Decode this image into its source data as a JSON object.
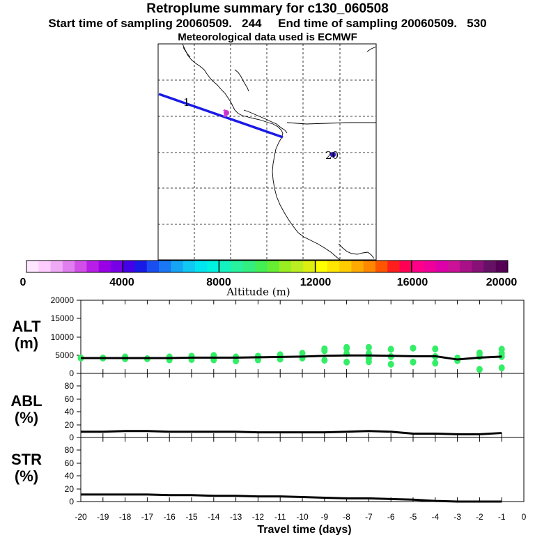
{
  "titles": {
    "line1": "Retroplume summary for c130_060508",
    "line2": "Start time of sampling 20060509.   244     End time of sampling 20060509.   530",
    "line3": "Meteorological data used is ECMWF"
  },
  "colors": {
    "track": "#1a1ae6",
    "dots": "#33ee66",
    "line": "#000000"
  },
  "map": {
    "markers": [
      {
        "text": "1",
        "color": "#000000"
      },
      {
        "text": "1",
        "color": "#cc33cc"
      },
      {
        "text": "20",
        "color": "#000000"
      }
    ]
  },
  "colorbar": {
    "label": "Altitude (m)",
    "ticks": [
      "0",
      "4000",
      "8000",
      "12000",
      "16000",
      "20000"
    ],
    "colors": [
      "#ffe6ff",
      "#ffccff",
      "#f0aaf5",
      "#e17ff0",
      "#d14ee8",
      "#b81ee6",
      "#9900e6",
      "#7700e6",
      "#4400e6",
      "#1a1ae6",
      "#1a4ef0",
      "#1a78f5",
      "#16a4f5",
      "#10c8f2",
      "#00e6f0",
      "#00f2e0",
      "#14f2c0",
      "#28f29e",
      "#33ee80",
      "#44ee55",
      "#66ee33",
      "#99ee22",
      "#bbee22",
      "#ddee11",
      "#ffff00",
      "#ffe600",
      "#ffcc00",
      "#ffaa00",
      "#ff8800",
      "#ff5500",
      "#ff1e1e",
      "#ff0055",
      "#ff0088",
      "#f00099",
      "#dd00aa",
      "#cc1199",
      "#aa1188",
      "#881177",
      "#661166",
      "#550055"
    ]
  },
  "panels": {
    "alt": {
      "label1": "ALT",
      "label2": "(m)",
      "yticks": [
        "0",
        "5000",
        "10000",
        "15000",
        "20000"
      ]
    },
    "abl": {
      "label1": "ABL",
      "label2": "(%)",
      "yticks": [
        "0",
        "20",
        "40",
        "60",
        "80"
      ]
    },
    "str": {
      "label1": "STR",
      "label2": "(%)",
      "yticks": [
        "0",
        "20",
        "40",
        "60",
        "80"
      ]
    }
  },
  "xaxis": {
    "label": "Travel time (days)",
    "ticks": [
      "-20",
      "-19",
      "-18",
      "-17",
      "-16",
      "-15",
      "-14",
      "-13",
      "-12",
      "-11",
      "-10",
      "-9",
      "-8",
      "-7",
      "-6",
      "-5",
      "-4",
      "-3",
      "-2",
      "-1",
      "0"
    ]
  },
  "chart_data": [
    {
      "type": "scatter",
      "title": "ALT (m)",
      "xlabel": "Travel time (days)",
      "ylabel": "Altitude (m)",
      "xlim": [
        -20,
        0
      ],
      "ylim": [
        0,
        20000
      ],
      "series": [
        {
          "name": "mean altitude",
          "x": [
            -20,
            -19,
            -18,
            -17,
            -16,
            -15,
            -14,
            -13,
            -12,
            -11,
            -10,
            -9,
            -8,
            -7,
            -6,
            -5,
            -4,
            -3,
            -2,
            -1
          ],
          "values": [
            4200,
            4200,
            4200,
            4200,
            4200,
            4300,
            4300,
            4300,
            4400,
            4500,
            4600,
            4800,
            4900,
            4900,
            4800,
            4700,
            4700,
            3800,
            4300,
            4600
          ]
        },
        {
          "name": "cluster altitudes",
          "x": [
            -20,
            -19,
            -18,
            -18,
            -17,
            -16,
            -16,
            -15,
            -15,
            -14,
            -14,
            -13,
            -13,
            -12,
            -12,
            -11,
            -11,
            -10,
            -10,
            -9,
            -9,
            -9,
            -8,
            -8,
            -8,
            -8,
            -7,
            -7,
            -7,
            -7,
            -6,
            -6,
            -6,
            -5,
            -5,
            -4,
            -4,
            -4,
            -3,
            -3,
            -2,
            -2,
            -2,
            -1,
            -1,
            -1,
            -1
          ],
          "values": [
            4200,
            4200,
            4500,
            4000,
            4000,
            3700,
            4500,
            3800,
            4700,
            3700,
            4900,
            3400,
            4500,
            3700,
            4700,
            3900,
            5100,
            4200,
            5500,
            3600,
            6200,
            6700,
            3100,
            5400,
            6800,
            7100,
            3200,
            4100,
            5400,
            7100,
            2500,
            4600,
            6600,
            3100,
            6900,
            2800,
            4600,
            6700,
            4200,
            3500,
            5600,
            4600,
            1100,
            1500,
            4600,
            5500,
            6600
          ]
        }
      ]
    },
    {
      "type": "line",
      "title": "ABL (%)",
      "xlabel": "Travel time (days)",
      "ylabel": "ABL (%)",
      "xlim": [
        -20,
        0
      ],
      "ylim": [
        0,
        100
      ],
      "x": [
        -20,
        -19,
        -18,
        -17,
        -16,
        -15,
        -14,
        -13,
        -12,
        -11,
        -10,
        -9,
        -8,
        -7,
        -6,
        -5,
        -4,
        -3,
        -2,
        -1
      ],
      "values": [
        9,
        9,
        10,
        10,
        9,
        9,
        9,
        9,
        8,
        8,
        8,
        8,
        9,
        10,
        9,
        6,
        6,
        5,
        5,
        7
      ]
    },
    {
      "type": "line",
      "title": "STR (%)",
      "xlabel": "Travel time (days)",
      "ylabel": "STR (%)",
      "xlim": [
        -20,
        0
      ],
      "ylim": [
        0,
        100
      ],
      "x": [
        -20,
        -19,
        -18,
        -17,
        -16,
        -15,
        -14,
        -13,
        -12,
        -11,
        -10,
        -9,
        -8,
        -7,
        -6,
        -5,
        -4,
        -3,
        -2,
        -1
      ],
      "values": [
        11,
        11,
        11,
        11,
        10,
        10,
        9,
        9,
        8,
        8,
        7,
        6,
        5,
        5,
        4,
        3,
        1,
        0,
        0,
        0
      ]
    }
  ]
}
